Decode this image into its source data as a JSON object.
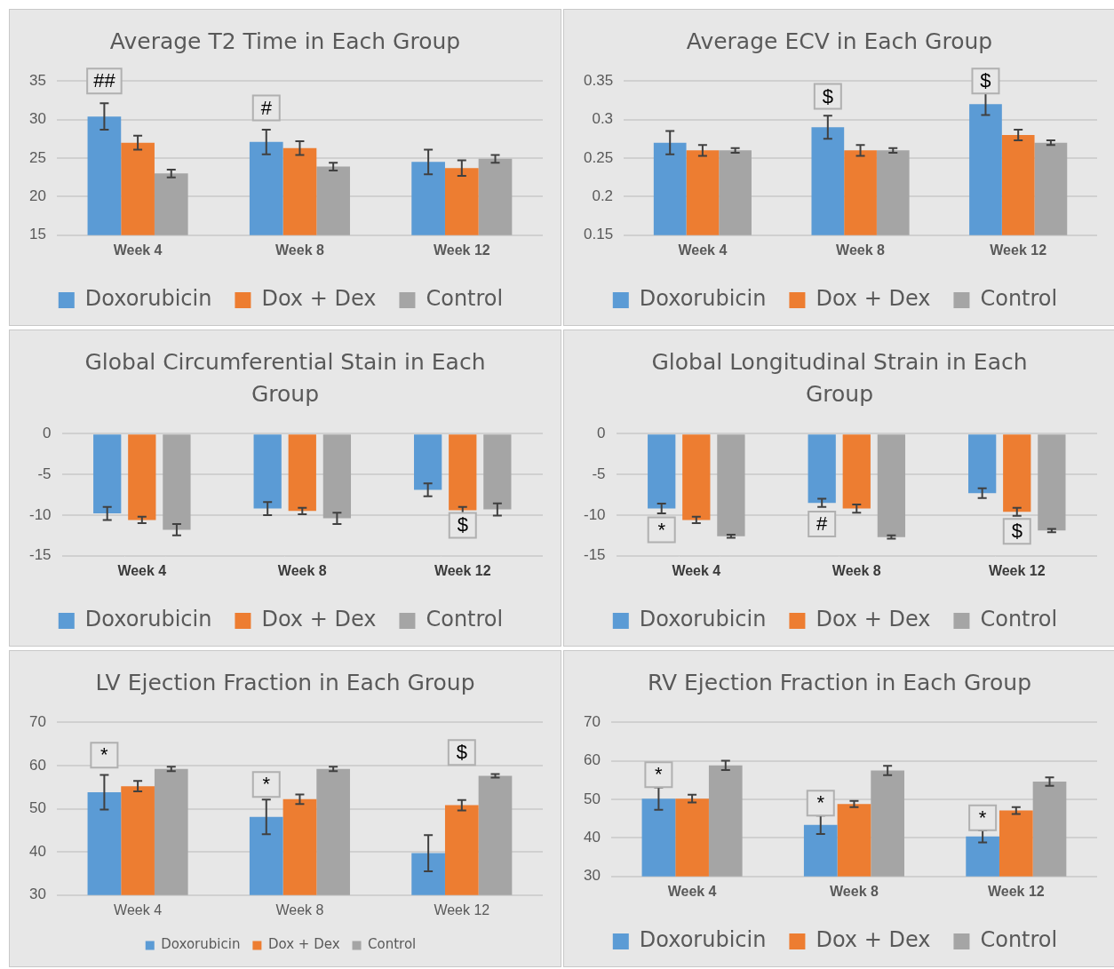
{
  "chart_data": [
    {
      "type": "bar",
      "title": "Average T2 Time in Each Group",
      "categories": [
        "Week 4",
        "Week 8",
        "Week 12"
      ],
      "ylim": [
        15,
        35
      ],
      "yticks": [
        15,
        20,
        25,
        30,
        35
      ],
      "grid": "y",
      "legend": "bottom",
      "series": [
        {
          "name": "Doxorubicin",
          "color": "#5b9bd5",
          "values": [
            30.4,
            27.1,
            24.5
          ],
          "errors": [
            1.7,
            1.6,
            1.6
          ]
        },
        {
          "name": "Dox + Dex",
          "color": "#ed7d31",
          "values": [
            27.0,
            26.3,
            23.7
          ],
          "errors": [
            0.9,
            0.9,
            1.0
          ]
        },
        {
          "name": "Control",
          "color": "#a5a5a5",
          "values": [
            23.0,
            23.9,
            24.9
          ],
          "errors": [
            0.5,
            0.5,
            0.5
          ]
        }
      ],
      "annotations": [
        "##",
        "#"
      ]
    },
    {
      "type": "bar",
      "title": "Average ECV in Each Group",
      "categories": [
        "Week 4",
        "Week 8",
        "Week 12"
      ],
      "ylim": [
        0.15,
        0.35
      ],
      "yticks": [
        0.15,
        {
          "value": 0.2,
          "label": "0.2"
        },
        0.25,
        {
          "value": 0.3,
          "label": "0.3"
        },
        0.35
      ],
      "grid": "y",
      "legend": "bottom",
      "series": [
        {
          "name": "Doxorubicin",
          "color": "#5b9bd5",
          "values": [
            0.27,
            0.29,
            0.32
          ],
          "errors": [
            0.015,
            0.015,
            0.014
          ]
        },
        {
          "name": "Dox + Dex",
          "color": "#ed7d31",
          "values": [
            0.26,
            0.26,
            0.28
          ],
          "errors": [
            0.007,
            0.007,
            0.007
          ]
        },
        {
          "name": "Control",
          "color": "#a5a5a5",
          "values": [
            0.26,
            0.26,
            0.27
          ],
          "errors": [
            0.003,
            0.003,
            0.003
          ]
        }
      ],
      "annotations": [
        "$",
        "$"
      ]
    },
    {
      "type": "bar",
      "title": "Global Circumferential Stain in Each Group",
      "categories": [
        "Week 4",
        "Week 8",
        "Week 12"
      ],
      "ylim": [
        -15,
        0
      ],
      "yticks": [
        -15,
        -10,
        -5,
        0
      ],
      "grid": "y",
      "legend": "bottom",
      "series": [
        {
          "name": "Doxorubicin",
          "color": "#5b9bd5",
          "values": [
            -9.8,
            -9.2,
            -6.9
          ],
          "errors": [
            0.8,
            0.8,
            0.8
          ]
        },
        {
          "name": "Dox + Dex",
          "color": "#ed7d31",
          "values": [
            -10.6,
            -9.5,
            -9.4
          ],
          "errors": [
            0.4,
            0.4,
            0.4
          ]
        },
        {
          "name": "Control",
          "color": "#a5a5a5",
          "values": [
            -11.8,
            -10.4,
            -9.3
          ],
          "errors": [
            0.7,
            0.7,
            0.75
          ]
        }
      ],
      "annotations": [
        "$"
      ]
    },
    {
      "type": "bar",
      "title": "Global Longitudinal Strain in Each Group",
      "categories": [
        "Week 4",
        "Week 8",
        "Week 12"
      ],
      "ylim": [
        -15,
        0
      ],
      "yticks": [
        -15,
        -10,
        -5,
        0
      ],
      "grid": "y",
      "legend": "bottom",
      "series": [
        {
          "name": "Doxorubicin",
          "color": "#5b9bd5",
          "values": [
            -9.2,
            -8.5,
            -7.3
          ],
          "errors": [
            0.6,
            0.5,
            0.6
          ]
        },
        {
          "name": "Dox + Dex",
          "color": "#ed7d31",
          "values": [
            -10.6,
            -9.2,
            -9.6
          ],
          "errors": [
            0.4,
            0.5,
            0.5
          ]
        },
        {
          "name": "Control",
          "color": "#a5a5a5",
          "values": [
            -12.6,
            -12.7,
            -11.9
          ],
          "errors": [
            0.2,
            0.2,
            0.2
          ]
        }
      ],
      "annotations": [
        "*",
        "#",
        "$"
      ]
    },
    {
      "type": "bar",
      "title": "LV Ejection Fraction in Each Group",
      "categories": [
        "Week 4",
        "Week 8",
        "Week 12"
      ],
      "ylim": [
        30,
        70
      ],
      "yticks": [
        30,
        40,
        50,
        60,
        70
      ],
      "grid": "y",
      "legend": "bottom",
      "series": [
        {
          "name": "Doxorubicin",
          "color": "#5b9bd5",
          "values": [
            53.8,
            48.1,
            39.7
          ],
          "errors": [
            4.0,
            4.0,
            4.2
          ]
        },
        {
          "name": "Dox + Dex",
          "color": "#ed7d31",
          "values": [
            55.2,
            52.2,
            50.8
          ],
          "errors": [
            1.2,
            1.1,
            1.2
          ]
        },
        {
          "name": "Control",
          "color": "#a5a5a5",
          "values": [
            59.2,
            59.2,
            57.6
          ],
          "errors": [
            0.5,
            0.5,
            0.4
          ]
        }
      ],
      "annotations": [
        "*",
        "*",
        "$"
      ]
    },
    {
      "type": "bar",
      "title": "RV Ejection Fraction in Each Group",
      "categories": [
        "Week 4",
        "Week 8",
        "Week 12"
      ],
      "ylim": [
        30,
        70
      ],
      "yticks": [
        30,
        40,
        50,
        60,
        70
      ],
      "grid": "y",
      "legend": "bottom",
      "series": [
        {
          "name": "Doxorubicin",
          "color": "#5b9bd5",
          "values": [
            50.2,
            43.4,
            40.4
          ],
          "errors": [
            2.9,
            2.4,
            1.6
          ]
        },
        {
          "name": "Dox + Dex",
          "color": "#ed7d31",
          "values": [
            50.2,
            48.8,
            47.1
          ],
          "errors": [
            1.0,
            0.8,
            0.9
          ]
        },
        {
          "name": "Control",
          "color": "#a5a5a5",
          "values": [
            58.8,
            57.5,
            54.6
          ],
          "errors": [
            1.2,
            1.2,
            1.1
          ]
        }
      ],
      "annotations": [
        "*",
        "*",
        "*"
      ]
    }
  ]
}
